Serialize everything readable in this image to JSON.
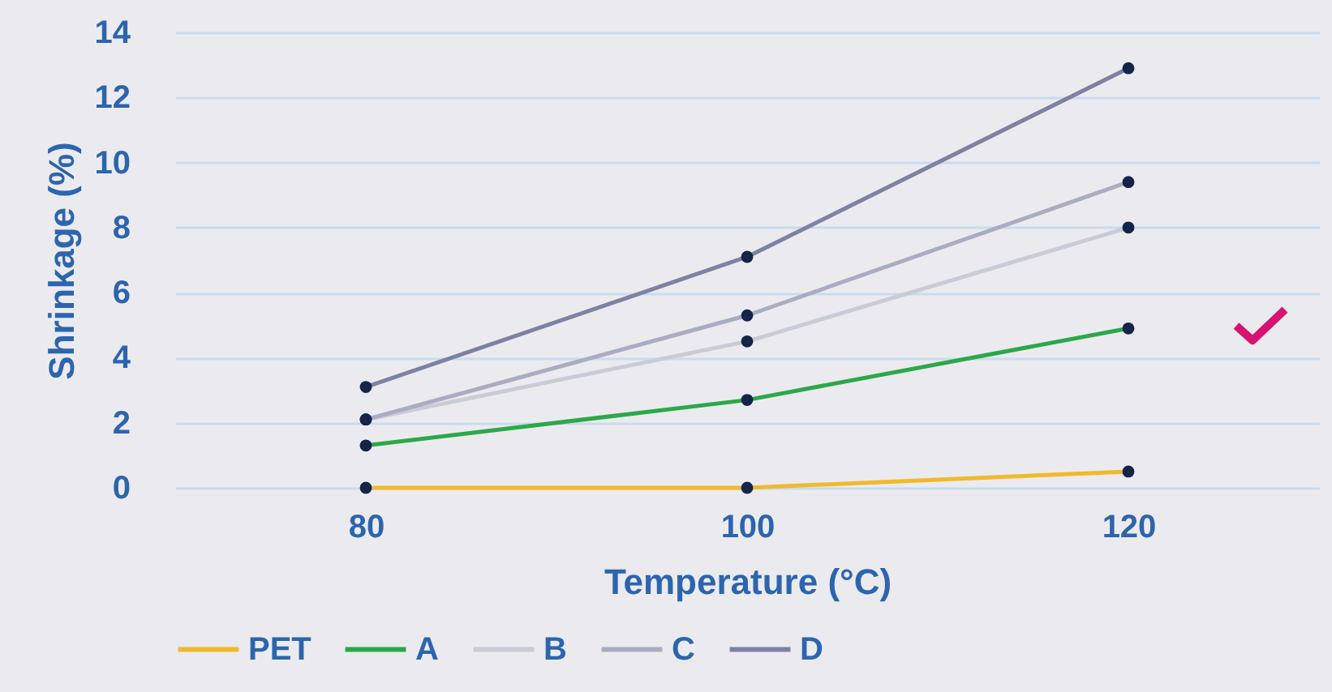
{
  "chart_data": {
    "type": "line",
    "xlabel": "Temperature (°C)",
    "ylabel": "Shrinkage (%)",
    "categories": [
      "80",
      "100",
      "120"
    ],
    "series": [
      {
        "name": "PET",
        "color": "#f0b92d",
        "values": [
          0,
          0,
          0.5
        ]
      },
      {
        "name": "A",
        "color": "#2ca84a",
        "values": [
          1.3,
          2.7,
          4.9
        ]
      },
      {
        "name": "B",
        "color": "#c9ccd6",
        "values": [
          2.1,
          4.5,
          8.0
        ]
      },
      {
        "name": "C",
        "color": "#a9adc2",
        "values": [
          2.1,
          5.3,
          9.4
        ]
      },
      {
        "name": "D",
        "color": "#7c82a3",
        "values": [
          3.1,
          7.1,
          12.9
        ]
      }
    ],
    "ylim": [
      0,
      14
    ],
    "yticks": [
      0,
      2,
      4,
      6,
      8,
      10,
      12,
      14
    ],
    "grid": "y",
    "legend": "bottom",
    "marker": "circle",
    "line_style": "solid"
  }
}
